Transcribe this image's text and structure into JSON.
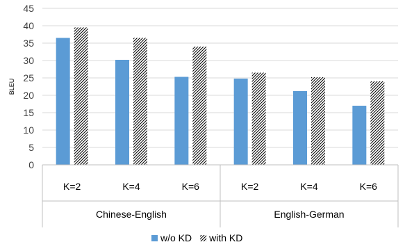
{
  "chart_data": {
    "type": "bar",
    "ylabel": "BLEU",
    "ylim": [
      0,
      45
    ],
    "yticks": [
      0,
      5,
      10,
      15,
      20,
      25,
      30,
      35,
      40,
      45
    ],
    "grid": true,
    "legend_position": "bottom",
    "categories": [
      "K=2",
      "K=4",
      "K=6",
      "K=2",
      "K=4",
      "K=6"
    ],
    "groups": [
      {
        "label": "Chinese-English",
        "categories": [
          "K=2",
          "K=4",
          "K=6"
        ]
      },
      {
        "label": "English-German",
        "categories": [
          "K=2",
          "K=4",
          "K=6"
        ]
      }
    ],
    "series": [
      {
        "name": "w/o KD",
        "color": "#5B9BD5",
        "pattern": "solid",
        "values": [
          36.5,
          30.2,
          25.3,
          24.8,
          21.2,
          17.0
        ]
      },
      {
        "name": "with KD",
        "color": "#000000",
        "pattern": "diagonal-hatch",
        "values": [
          39.5,
          36.5,
          34.0,
          26.5,
          25.2,
          24.0
        ]
      }
    ]
  }
}
